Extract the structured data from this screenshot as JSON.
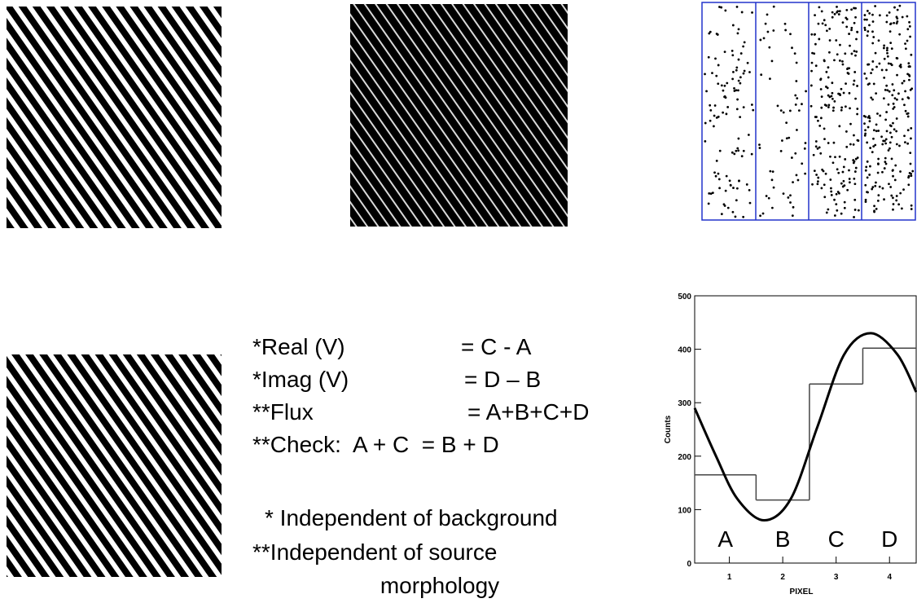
{
  "equations": [
    [
      "*Real (V)",
      "= C - A"
    ],
    [
      "*Imag (V)",
      "= D – B"
    ],
    [
      "**Flux",
      "= A+B+C+D"
    ],
    [
      "**Check:  A + C  = B + D"
    ]
  ],
  "notes": [
    "* Independent of background",
    "**Independent of source",
    "morphology"
  ],
  "chart_data": {
    "type": "line",
    "xlabel": "PIXEL",
    "ylabel": "Counts",
    "x": [
      0.35,
      0.75,
      1.15,
      1.65,
      2.15,
      2.65,
      3.15,
      3.65,
      4.15,
      4.5
    ],
    "values": [
      290,
      200,
      120,
      80,
      120,
      255,
      390,
      430,
      390,
      320
    ],
    "step": {
      "bins": [
        0.35,
        1.5,
        2.5,
        3.5,
        4.5
      ],
      "counts": [
        165,
        118,
        335,
        402
      ],
      "labels": [
        "A",
        "B",
        "C",
        "D"
      ]
    },
    "xlim": [
      0.35,
      4.5
    ],
    "ylim": [
      0,
      500
    ],
    "xticks": [
      1,
      2,
      3,
      4
    ],
    "yticks": [
      0,
      100,
      200,
      300,
      400,
      500
    ]
  }
}
